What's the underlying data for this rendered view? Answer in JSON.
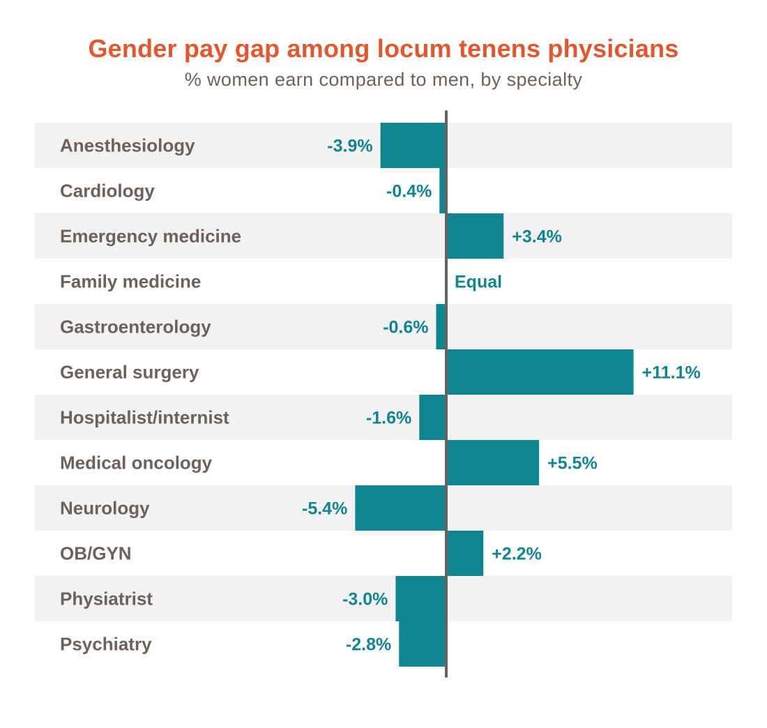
{
  "chart_data": {
    "type": "bar",
    "orientation": "horizontal-diverging",
    "title": "Gender pay gap among locum tenens physicians",
    "subtitle": "% women earn compared to men, by specialty",
    "xlabel": "",
    "ylabel": "",
    "xlim": [
      -6.5,
      13
    ],
    "grid": false,
    "categories": [
      "Anesthesiology",
      "Cardiology",
      "Emergency medicine",
      "Family medicine",
      "Gastroenterology",
      "General surgery",
      "Hospitalist/internist",
      "Medical oncology",
      "Neurology",
      "OB/GYN",
      "Physiatrist",
      "Psychiatry"
    ],
    "values": [
      -3.9,
      -0.4,
      3.4,
      0,
      -0.6,
      11.1,
      -1.6,
      5.5,
      -5.4,
      2.2,
      -3.0,
      -2.8
    ],
    "value_labels": [
      "-3.9%",
      "-0.4%",
      "+3.4%",
      "Equal",
      "-0.6%",
      "+11.1%",
      "-1.6%",
      "+5.5%",
      "-5.4%",
      "+2.2%",
      "-3.0%",
      "-2.8%"
    ]
  },
  "colors": {
    "title": "#e4572e",
    "subtitle": "#6d6259",
    "label": "#6d6259",
    "bar": "#0f8591",
    "value": "#0f8591",
    "band": "#f2f2f2",
    "axis": "#6d6259"
  }
}
